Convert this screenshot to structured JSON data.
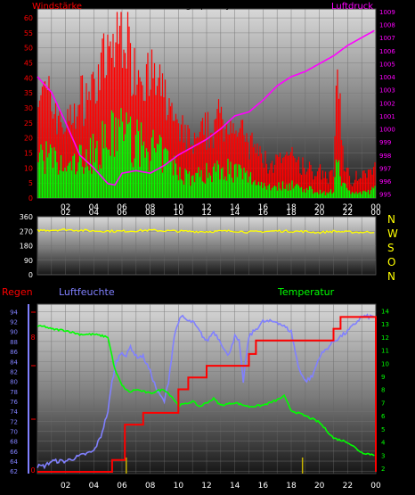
{
  "top": {
    "title": "24 hour graph day : 25 März 2026",
    "left_label": "Windstärke",
    "right_label": "Luftdruck",
    "left_ticks": [
      0,
      5,
      10,
      15,
      20,
      25,
      30,
      35,
      40,
      45,
      50,
      55,
      60
    ],
    "right_ticks": [
      995,
      996,
      997,
      998,
      999,
      1000,
      1001,
      1002,
      1003,
      1004,
      1005,
      1006,
      1007,
      1008,
      1009
    ],
    "x_ticks": [
      "02",
      "04",
      "06",
      "08",
      "10",
      "12",
      "14",
      "16",
      "18",
      "20",
      "22",
      "00"
    ],
    "colors": {
      "gust": "#ff0000",
      "wind": "#00ff00",
      "pressure": "#ff00ff"
    }
  },
  "mid": {
    "left_ticks": [
      0,
      90,
      180,
      270,
      360
    ],
    "right_labels": [
      "N",
      "W",
      "S",
      "O",
      "N"
    ],
    "x_ticks": [
      "02",
      "04",
      "06",
      "08",
      "10",
      "12",
      "14",
      "16",
      "18",
      "20",
      "22",
      "00"
    ],
    "color": "#ffff00"
  },
  "bottom": {
    "label_rain": "Regen",
    "label_humidity": "Luftfeuchte",
    "label_temp": "Temperatur",
    "left_ticks": [
      62,
      64,
      66,
      68,
      70,
      72,
      74,
      76,
      78,
      80,
      82,
      84,
      86,
      88,
      90,
      92,
      94
    ],
    "rain_ticks": [
      "0",
      "",
      "",
      "",
      "8"
    ],
    "right_ticks": [
      2,
      3,
      4,
      5,
      6,
      7,
      8,
      9,
      10,
      11,
      12,
      13,
      14
    ],
    "x_ticks": [
      "02",
      "04",
      "06",
      "08",
      "10",
      "12",
      "14",
      "16",
      "18",
      "20",
      "22",
      "00"
    ],
    "colors": {
      "rain": "#ff0000",
      "humidity": "#8080ff",
      "temp": "#00ff00",
      "tick": "#c8b400"
    }
  },
  "chart_data": [
    {
      "type": "line",
      "title": "24 hour graph day : 25 März 2026",
      "x_range": [
        0,
        24
      ],
      "ylabel_left": "Windstärke",
      "ylabel_right": "Luftdruck",
      "ylim_left": [
        0,
        63
      ],
      "ylim_right": [
        994.7,
        1009.2
      ],
      "series": [
        {
          "name": "Windstärke",
          "axis": "left",
          "x": [
            0,
            1,
            2,
            3,
            4,
            4.5,
            5,
            5.5,
            6,
            6.5,
            7,
            8,
            9,
            10,
            11,
            12,
            13,
            14,
            15,
            16,
            17,
            18,
            19,
            20,
            20.5,
            21,
            21.3,
            21.6,
            22,
            23,
            24
          ],
          "values": [
            20,
            17,
            12,
            17,
            20,
            23,
            25,
            28,
            33,
            27,
            24,
            22,
            18,
            12,
            9,
            11,
            14,
            12,
            9,
            6,
            5,
            6,
            4,
            3,
            2,
            3,
            24,
            8,
            3,
            2,
            4
          ]
        },
        {
          "name": "Luftdruck",
          "axis": "right",
          "x": [
            0,
            1,
            2,
            3,
            4,
            5,
            5.5,
            6,
            7,
            8,
            9,
            10,
            11,
            12,
            13,
            14,
            15,
            16,
            17,
            18,
            19,
            20,
            21,
            22,
            23,
            24
          ],
          "values": [
            1004,
            1002.8,
            1000.5,
            998,
            997,
            995.8,
            995.7,
            996.6,
            996.8,
            996.6,
            997.2,
            998,
            998.6,
            999.2,
            1000,
            1001,
            1001.3,
            1002.2,
            1003.3,
            1004,
            1004.4,
            1005,
            1005.6,
            1006.4,
            1007,
            1007.6
          ]
        }
      ]
    },
    {
      "type": "line",
      "x_range": [
        0,
        24
      ],
      "ylim": [
        0,
        360
      ],
      "series": [
        {
          "name": "Windrichtung",
          "x": [
            0,
            2,
            4,
            6,
            8,
            10,
            12,
            14,
            15,
            16,
            17,
            18,
            19,
            20,
            21,
            22,
            23,
            24
          ],
          "values": [
            275,
            280,
            272,
            270,
            276,
            270,
            268,
            272,
            265,
            268,
            272,
            270,
            268,
            262,
            270,
            265,
            264,
            266
          ]
        }
      ]
    },
    {
      "type": "line",
      "x_range": [
        0,
        24
      ],
      "ylabel_left": "Luftfeuchte",
      "ylabel_right": "Temperatur",
      "ylim_left": [
        61.5,
        95.5
      ],
      "ylim_right": [
        1.6,
        14.5
      ],
      "series": [
        {
          "name": "Luftfeuchte",
          "axis": "left",
          "x": [
            0,
            0.5,
            1,
            2,
            3,
            4,
            4.5,
            5,
            5.3,
            5.6,
            6,
            6.3,
            6.6,
            7,
            7.5,
            8,
            8.5,
            9,
            9.3,
            9.7,
            10,
            10.3,
            10.7,
            11,
            11.5,
            12,
            12.5,
            13,
            13.5,
            14,
            14.3,
            14.6,
            15,
            16,
            17,
            18,
            18.5,
            19,
            19.5,
            20,
            21,
            22,
            23,
            24
          ],
          "values": [
            63,
            63,
            64,
            64,
            65,
            66,
            69,
            74,
            80,
            84,
            86,
            85,
            87,
            85,
            85,
            82,
            78,
            76,
            80,
            89,
            92,
            93,
            92,
            92,
            90,
            88,
            90,
            88,
            85,
            89,
            88,
            80,
            89,
            92,
            92,
            90,
            83,
            80,
            81,
            85,
            88,
            90,
            93,
            93
          ]
        },
        {
          "name": "Temperatur",
          "axis": "right",
          "x": [
            0,
            0.5,
            1,
            2,
            3,
            4,
            5,
            5.5,
            6,
            6.5,
            7,
            8,
            8.5,
            9,
            9.5,
            10,
            10.5,
            11,
            11.5,
            12,
            12.5,
            13,
            14,
            15,
            16,
            17,
            17.5,
            18,
            19,
            20,
            21,
            22,
            23,
            24
          ],
          "values": [
            12.8,
            12.8,
            12.6,
            12.5,
            12.2,
            12.2,
            12,
            9.5,
            8.3,
            7.8,
            8,
            7.7,
            7.9,
            8,
            7.5,
            6.8,
            6.9,
            7.1,
            6.7,
            7,
            7.3,
            6.8,
            7,
            6.7,
            6.8,
            7.2,
            7.5,
            6.4,
            6,
            5.5,
            4.3,
            4,
            3.2,
            3
          ]
        },
        {
          "name": "Regen",
          "axis": "rain",
          "x": [
            0,
            5,
            5.3,
            6,
            6.2,
            7.2,
            7.5,
            8.5,
            9.5,
            10,
            10.7,
            11.5,
            12,
            13,
            14,
            15,
            15.5,
            17,
            19,
            20,
            21,
            21.5,
            22,
            23,
            24
          ],
          "values": [
            0,
            0,
            0.7,
            0.7,
            2.8,
            2.8,
            3.5,
            3.5,
            3.5,
            4.9,
            5.6,
            5.6,
            6.3,
            6.3,
            6.3,
            7,
            7.8,
            7.8,
            7.8,
            7.8,
            8.5,
            9.2,
            9.2,
            9.2,
            0
          ]
        }
      ]
    }
  ]
}
